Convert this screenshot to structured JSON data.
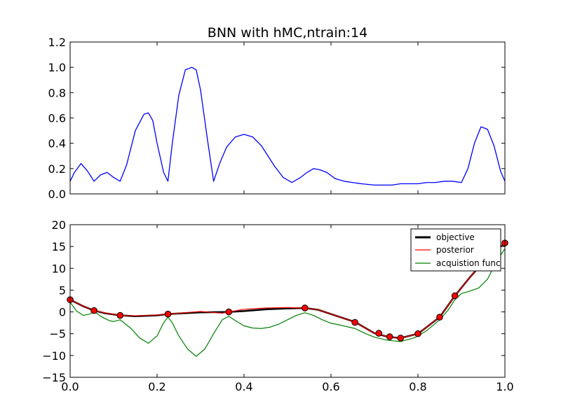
{
  "chart_data": [
    {
      "type": "line",
      "title": "BNN with hMC,ntrain:14",
      "xlabel": "",
      "ylabel": "",
      "xlim": [
        0.0,
        1.0
      ],
      "ylim": [
        0.0,
        1.2
      ],
      "y_ticks": [
        "0.0",
        "0.2",
        "0.4",
        "0.6",
        "0.8",
        "1.0",
        "1.2"
      ],
      "x_ticklabels_visible": false,
      "grid": false,
      "series": [
        {
          "color": "#0000ff",
          "x": [
            0.0,
            0.01,
            0.025,
            0.04,
            0.055,
            0.07,
            0.085,
            0.1,
            0.115,
            0.13,
            0.15,
            0.17,
            0.18,
            0.19,
            0.2,
            0.215,
            0.225,
            0.235,
            0.25,
            0.265,
            0.28,
            0.29,
            0.3,
            0.315,
            0.33,
            0.345,
            0.36,
            0.38,
            0.4,
            0.42,
            0.44,
            0.455,
            0.47,
            0.49,
            0.51,
            0.53,
            0.545,
            0.56,
            0.575,
            0.59,
            0.61,
            0.63,
            0.65,
            0.67,
            0.7,
            0.72,
            0.74,
            0.76,
            0.78,
            0.8,
            0.82,
            0.84,
            0.86,
            0.88,
            0.9,
            0.915,
            0.93,
            0.945,
            0.96,
            0.975,
            0.99,
            1.0
          ],
          "values": [
            0.1,
            0.17,
            0.24,
            0.18,
            0.1,
            0.15,
            0.17,
            0.13,
            0.1,
            0.23,
            0.5,
            0.63,
            0.64,
            0.58,
            0.4,
            0.17,
            0.1,
            0.4,
            0.78,
            0.98,
            1.0,
            0.98,
            0.82,
            0.45,
            0.1,
            0.25,
            0.37,
            0.45,
            0.47,
            0.45,
            0.38,
            0.3,
            0.22,
            0.13,
            0.09,
            0.13,
            0.17,
            0.2,
            0.19,
            0.17,
            0.12,
            0.1,
            0.09,
            0.08,
            0.07,
            0.07,
            0.07,
            0.08,
            0.08,
            0.08,
            0.09,
            0.09,
            0.1,
            0.1,
            0.09,
            0.2,
            0.4,
            0.53,
            0.51,
            0.38,
            0.18,
            0.1
          ]
        }
      ]
    },
    {
      "type": "line",
      "title": "",
      "xlabel": "",
      "ylabel": "",
      "xlim": [
        0.0,
        1.0
      ],
      "ylim": [
        -15,
        20
      ],
      "x_ticks": [
        "0.0",
        "0.2",
        "0.4",
        "0.6",
        "0.8",
        "1.0"
      ],
      "y_ticks": [
        "−15",
        "−10",
        "−5",
        "0",
        "5",
        "10",
        "15",
        "20"
      ],
      "legend_position": "top-right",
      "grid": false,
      "series": [
        {
          "name": "objective",
          "color": "#000000",
          "x": [
            0.0,
            0.03,
            0.055,
            0.08,
            0.115,
            0.15,
            0.2,
            0.225,
            0.26,
            0.3,
            0.365,
            0.4,
            0.45,
            0.5,
            0.54,
            0.57,
            0.6,
            0.655,
            0.7,
            0.73,
            0.76,
            0.8,
            0.82,
            0.85,
            0.885,
            0.92,
            0.96,
            1.0
          ],
          "values": [
            2.8,
            1.3,
            0.3,
            -0.3,
            -0.8,
            -1.0,
            -0.8,
            -0.5,
            -0.3,
            -0.1,
            0.0,
            0.2,
            0.6,
            0.8,
            0.9,
            0.5,
            -0.5,
            -2.3,
            -4.9,
            -5.7,
            -6.0,
            -5.0,
            -3.5,
            -1.2,
            3.7,
            8.0,
            12.5,
            15.8
          ]
        },
        {
          "name": "posterior",
          "color": "#ff0000",
          "x": [
            0.0,
            0.03,
            0.055,
            0.08,
            0.115,
            0.15,
            0.2,
            0.225,
            0.26,
            0.3,
            0.35,
            0.365,
            0.4,
            0.45,
            0.5,
            0.54,
            0.57,
            0.6,
            0.655,
            0.7,
            0.73,
            0.76,
            0.8,
            0.82,
            0.85,
            0.885,
            0.92,
            0.96,
            1.0
          ],
          "values": [
            2.8,
            1.3,
            0.3,
            -0.2,
            -0.8,
            -0.9,
            -0.7,
            -0.5,
            -0.2,
            0.1,
            -0.3,
            0.0,
            0.6,
            0.9,
            1.0,
            0.9,
            0.5,
            -0.5,
            -2.3,
            -4.9,
            -5.7,
            -6.0,
            -5.0,
            -3.5,
            -1.2,
            3.7,
            8.0,
            12.5,
            15.8
          ]
        },
        {
          "name": "acquistion func",
          "color": "#008000",
          "x": [
            0.0,
            0.015,
            0.03,
            0.045,
            0.055,
            0.07,
            0.09,
            0.1,
            0.115,
            0.14,
            0.16,
            0.18,
            0.2,
            0.215,
            0.225,
            0.235,
            0.25,
            0.27,
            0.29,
            0.31,
            0.33,
            0.35,
            0.365,
            0.38,
            0.4,
            0.42,
            0.44,
            0.46,
            0.48,
            0.5,
            0.52,
            0.54,
            0.56,
            0.58,
            0.6,
            0.62,
            0.655,
            0.68,
            0.7,
            0.73,
            0.76,
            0.79,
            0.8,
            0.82,
            0.85,
            0.87,
            0.885,
            0.9,
            0.92,
            0.94,
            0.96,
            0.97,
            0.98,
            1.0
          ],
          "values": [
            2.2,
            0.2,
            -0.8,
            -0.5,
            0.2,
            -1.0,
            -2.0,
            -2.2,
            -1.8,
            -3.8,
            -6.0,
            -7.2,
            -5.5,
            -2.5,
            -1.2,
            -2.5,
            -5.5,
            -8.5,
            -10.2,
            -8.5,
            -5.0,
            -1.8,
            -1.0,
            -2.0,
            -3.2,
            -3.7,
            -3.8,
            -3.5,
            -2.8,
            -1.8,
            -0.8,
            -0.2,
            -0.8,
            -1.8,
            -2.6,
            -3.0,
            -3.8,
            -5.0,
            -5.8,
            -6.5,
            -6.8,
            -6.0,
            -5.5,
            -4.3,
            -1.8,
            0.5,
            2.8,
            4.2,
            4.8,
            5.5,
            7.5,
            9.5,
            11.5,
            14.5
          ]
        }
      ],
      "markers": {
        "color": "#ff0000",
        "edge_color": "#000000",
        "x": [
          0.0,
          0.055,
          0.115,
          0.225,
          0.365,
          0.54,
          0.655,
          0.71,
          0.735,
          0.76,
          0.8,
          0.85,
          0.885,
          1.0
        ],
        "values": [
          2.8,
          0.3,
          -0.8,
          -0.5,
          0.0,
          0.9,
          -2.4,
          -4.9,
          -5.7,
          -6.0,
          -5.0,
          -1.2,
          3.7,
          15.8
        ]
      }
    }
  ]
}
